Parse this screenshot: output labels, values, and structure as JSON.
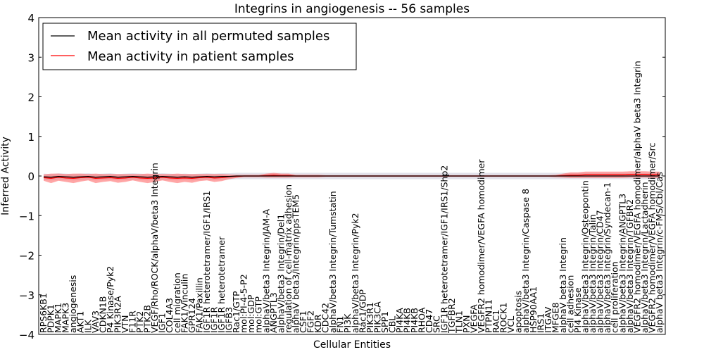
{
  "chart_data": {
    "type": "line",
    "title": "Integrins in angiogenesis -- 56 samples",
    "xlabel": "Cellular Entities",
    "ylabel": "Inferred Activity",
    "ylim": [
      -4,
      4
    ],
    "yticks": [
      -4,
      -3,
      -2,
      -1,
      0,
      1,
      2,
      3,
      4
    ],
    "ytick_labels": [
      "−4",
      "−3",
      "−2",
      "−1",
      "0",
      "1",
      "2",
      "3",
      "4"
    ],
    "legend": {
      "placement": "top-left",
      "entries": [
        {
          "label": "Mean activity in all permuted samples",
          "color": "#000000"
        },
        {
          "label": "Mean activity in patient samples",
          "color": "#ff0000"
        }
      ]
    },
    "categories": [
      "RPS6KB1",
      "PDPK1",
      "MAPK1",
      "MAPK3",
      "angiogenesis",
      "AKT1",
      "ILK",
      "VAV3",
      "CDKN1B",
      "P4 Kinase/Pyk2",
      "PIK3R2A",
      "VTN",
      "F11R",
      "PTK2",
      "PTK2B",
      "VEGF/Rho/ROCK/alphaV/beta3 Integrin",
      "IGF1",
      "COL4A3",
      "cell migration",
      "FAK1/Vinculin",
      "GPR124",
      "FAK1/Paxillin",
      "IGF1R heterotetramer/IGF1/IRS1",
      "IGF1R",
      "IGF1R heterotetramer",
      "IGFB3",
      "Rac1/GTP",
      "mol:PI-4-5-P2",
      "mol:GDP",
      "mol:GTP",
      "alphaV/beta3 Integrin/JAM-A",
      "ANGPTL3",
      "alphaV/beta3 Integrin/Del1",
      "regulation of cell-matrix adhesion",
      "alphaV beta3/Integrin/ppsTEM5",
      "CSF1",
      "FGF2",
      "KDR",
      "CDC42",
      "alphaV/beta3 Integrin/Tumstatin",
      "FN1",
      "PI3K",
      "alphaV/beta3 Integrin/Pyk2",
      "Rac1/GDP",
      "PIK3R1",
      "PIK3CA",
      "SPP1",
      "CBL",
      "PI4KA",
      "PI4KB",
      "PI4KB",
      "RHOA",
      "CD47",
      "SRC",
      "IGF1R heterotetramer/IGF1/IRS1/Shp2",
      "TGFBR2",
      "TLN1",
      "PXN",
      "VEGFA",
      "VEGFR2 homodimer/VEGFA homodimer",
      "PTPN11",
      "RAC1",
      "ROCK1",
      "VCL",
      "apoptosis",
      "alphaV/beta3 Integrin/Caspase 8",
      "HSP90AA1",
      "IRS1",
      "ITGAV",
      "MFGE8",
      "alphaV beta3 Integrin",
      "cell adhesion",
      "PI4 Kinase",
      "alphaV/beta3 Integrin/Osteopontin",
      "alphaV/beta3 Integrin/Talin",
      "alphaV/beta3 Integrin/CD47",
      "alphaV/beta3 Integrin/Syndecan-1",
      "cell proliferation",
      "alphaV/beta3 Integrin/ANGPTL3",
      "alphaV/beta3 Integrin/TGFBR2",
      "VEGFR2 homodimer/VEGFA homodimer/alphaV beta3 Integrin",
      "alphaV/beta3 Integrin/Lactadherin",
      "VEGFR2 homodimer/VEGFA homodimer/Src",
      "alphaV beta3 Integrin/c-FMS/Cbl/Cas"
    ],
    "series": [
      {
        "name": "Mean activity in all permuted samples",
        "color": "#000000",
        "values": [
          -0.02,
          -0.03,
          -0.01,
          -0.02,
          -0.03,
          -0.02,
          -0.01,
          -0.03,
          -0.02,
          -0.01,
          -0.03,
          -0.02,
          -0.01,
          -0.02,
          -0.03,
          -0.02,
          -0.01,
          -0.02,
          -0.03,
          -0.02,
          -0.03,
          -0.02,
          -0.01,
          -0.02,
          -0.01,
          -0.01,
          0,
          0,
          0,
          0,
          0,
          0,
          0,
          0,
          0,
          0,
          0,
          0,
          0,
          0,
          0,
          0,
          0,
          0,
          0,
          0,
          0,
          0,
          0,
          0,
          0,
          0,
          0,
          0,
          0,
          0,
          0,
          0,
          0,
          0,
          0,
          0,
          0,
          0,
          0,
          0,
          0,
          0,
          0,
          0,
          0,
          0,
          0,
          0,
          0,
          0,
          0,
          0,
          0,
          0,
          0,
          0,
          0,
          0
        ],
        "band": 0.08
      },
      {
        "name": "Mean activity in patient samples",
        "color": "#ff0000",
        "values": [
          -0.04,
          -0.06,
          -0.03,
          -0.05,
          -0.06,
          -0.04,
          -0.03,
          -0.06,
          -0.05,
          -0.04,
          -0.06,
          -0.05,
          -0.03,
          -0.05,
          -0.06,
          -0.05,
          -0.03,
          -0.05,
          -0.06,
          -0.05,
          -0.06,
          -0.04,
          -0.03,
          -0.05,
          -0.04,
          -0.02,
          -0.01,
          0,
          0,
          0,
          0.01,
          0.02,
          0.01,
          0.01,
          0,
          0,
          0,
          0,
          0,
          0,
          0,
          0,
          0,
          0,
          0,
          0,
          0,
          0,
          0,
          0,
          0,
          0,
          0,
          0,
          0,
          0,
          0,
          0,
          0,
          0,
          0,
          0,
          0,
          0,
          0,
          0,
          0,
          0,
          0,
          0,
          0.01,
          0.02,
          0.02,
          0.03,
          0.03,
          0.03,
          0.03,
          0.03,
          0.03,
          0.04,
          0.04,
          0.04,
          0.03,
          0.03
        ],
        "band": [
          0.08,
          0.12,
          0.09,
          0.1,
          0.12,
          0.1,
          0.08,
          0.12,
          0.1,
          0.09,
          0.11,
          0.1,
          0.08,
          0.1,
          0.12,
          0.1,
          0.08,
          0.1,
          0.12,
          0.1,
          0.11,
          0.09,
          0.08,
          0.1,
          0.09,
          0.06,
          0.04,
          0.03,
          0.03,
          0.03,
          0.05,
          0.06,
          0.05,
          0.05,
          0.03,
          0.03,
          0.03,
          0.03,
          0.02,
          0.02,
          0.02,
          0.02,
          0.02,
          0.02,
          0.02,
          0.02,
          0.02,
          0.02,
          0.02,
          0.02,
          0.02,
          0.02,
          0.02,
          0.02,
          0.02,
          0.02,
          0.02,
          0.02,
          0.02,
          0.02,
          0.02,
          0.02,
          0.02,
          0.02,
          0.02,
          0.02,
          0.02,
          0.02,
          0.02,
          0.03,
          0.05,
          0.07,
          0.07,
          0.08,
          0.08,
          0.08,
          0.08,
          0.08,
          0.08,
          0.08,
          0.08,
          0.08,
          0.08,
          0.08
        ]
      }
    ]
  }
}
